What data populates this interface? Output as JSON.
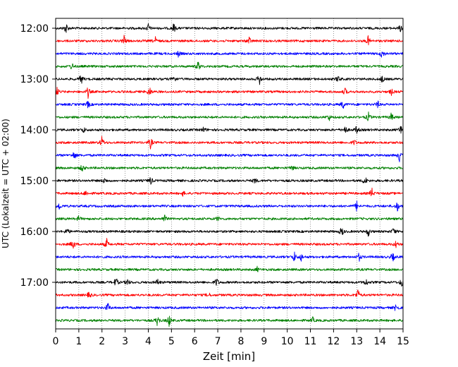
{
  "chart_data": {
    "type": "line",
    "title": "",
    "xlabel": "Zeit  [min]",
    "ylabel": "UTC (Lokalzeit = UTC + 02:00)",
    "xlim": [
      0,
      15
    ],
    "x_ticks": [
      "0",
      "1",
      "2",
      "3",
      "4",
      "5",
      "6",
      "7",
      "8",
      "9",
      "10",
      "11",
      "12",
      "13",
      "14",
      "15"
    ],
    "y_tick_labels": [
      "12:00",
      "13:00",
      "14:00",
      "15:00",
      "16:00",
      "17:00"
    ],
    "grid": "vertical dotted lines at each minute",
    "rows_per_hour": 4,
    "row_minutes": 15,
    "trace_colors": [
      "#000000",
      "#ff0000",
      "#0000ff",
      "#008000"
    ],
    "rows": [
      {
        "start": "12:00",
        "color": "#000000",
        "events": [
          [
            0.45,
            1.0
          ],
          [
            4.0,
            0.7
          ],
          [
            5.1,
            0.8
          ],
          [
            14.9,
            0.7
          ]
        ]
      },
      {
        "start": "12:15",
        "color": "#ff0000",
        "events": [
          [
            2.95,
            1.0
          ],
          [
            4.3,
            0.6
          ],
          [
            8.35,
            0.7
          ],
          [
            13.5,
            0.8
          ]
        ]
      },
      {
        "start": "12:30",
        "color": "#0000ff",
        "events": [
          [
            5.3,
            0.5
          ],
          [
            14.1,
            0.9
          ]
        ]
      },
      {
        "start": "12:45",
        "color": "#008000",
        "events": [
          [
            0.7,
            0.6
          ],
          [
            6.15,
            0.9
          ]
        ]
      },
      {
        "start": "13:00",
        "color": "#000000",
        "events": [
          [
            1.1,
            0.9
          ],
          [
            5.1,
            0.7
          ],
          [
            8.8,
            1.0
          ],
          [
            12.2,
            0.6
          ],
          [
            14.1,
            0.6
          ]
        ]
      },
      {
        "start": "13:15",
        "color": "#ff0000",
        "events": [
          [
            0.05,
            1.0
          ],
          [
            1.4,
            0.9
          ],
          [
            4.05,
            0.9
          ],
          [
            12.5,
            0.6
          ],
          [
            14.5,
            0.5
          ]
        ]
      },
      {
        "start": "13:30",
        "color": "#0000ff",
        "events": [
          [
            1.4,
            0.6
          ],
          [
            12.4,
            0.8
          ],
          [
            13.9,
            0.6
          ]
        ]
      },
      {
        "start": "13:45",
        "color": "#008000",
        "events": [
          [
            11.8,
            0.6
          ],
          [
            13.5,
            0.8
          ],
          [
            14.5,
            0.7
          ]
        ]
      },
      {
        "start": "14:00",
        "color": "#000000",
        "events": [
          [
            1.2,
            0.5
          ],
          [
            6.4,
            0.5
          ],
          [
            12.5,
            0.8
          ],
          [
            13.0,
            0.7
          ],
          [
            14.9,
            0.8
          ]
        ]
      },
      {
        "start": "14:15",
        "color": "#ff0000",
        "events": [
          [
            2.0,
            1.0
          ],
          [
            4.1,
            1.0
          ],
          [
            12.9,
            0.5
          ]
        ]
      },
      {
        "start": "14:30",
        "color": "#0000ff",
        "events": [
          [
            0.8,
            0.8
          ],
          [
            14.85,
            1.0
          ]
        ]
      },
      {
        "start": "14:45",
        "color": "#008000",
        "events": [
          [
            1.15,
            0.7
          ],
          [
            10.2,
            0.5
          ]
        ]
      },
      {
        "start": "15:00",
        "color": "#000000",
        "events": [
          [
            2.1,
            0.5
          ],
          [
            4.1,
            0.7
          ],
          [
            8.6,
            0.5
          ],
          [
            13.35,
            0.9
          ]
        ]
      },
      {
        "start": "15:15",
        "color": "#ff0000",
        "events": [
          [
            1.3,
            0.5
          ],
          [
            5.5,
            0.4
          ],
          [
            13.65,
            0.9
          ]
        ]
      },
      {
        "start": "15:30",
        "color": "#0000ff",
        "events": [
          [
            0.15,
            0.6
          ],
          [
            13.0,
            0.8
          ],
          [
            14.75,
            0.9
          ]
        ]
      },
      {
        "start": "15:45",
        "color": "#008000",
        "events": [
          [
            1.0,
            0.5
          ],
          [
            4.7,
            0.7
          ],
          [
            7.0,
            0.4
          ]
        ]
      },
      {
        "start": "16:00",
        "color": "#000000",
        "events": [
          [
            0.5,
            0.6
          ],
          [
            12.35,
            0.9
          ],
          [
            13.5,
            0.8
          ],
          [
            14.6,
            0.7
          ]
        ]
      },
      {
        "start": "16:15",
        "color": "#ff0000",
        "events": [
          [
            0.75,
            1.0
          ],
          [
            2.2,
            0.9
          ],
          [
            14.7,
            0.6
          ]
        ]
      },
      {
        "start": "16:30",
        "color": "#0000ff",
        "events": [
          [
            10.3,
            0.9
          ],
          [
            10.6,
            0.6
          ],
          [
            13.1,
            0.7
          ],
          [
            14.55,
            0.8
          ]
        ]
      },
      {
        "start": "16:45",
        "color": "#008000",
        "events": [
          [
            8.7,
            0.4
          ]
        ]
      },
      {
        "start": "17:00",
        "color": "#000000",
        "events": [
          [
            2.6,
            0.9
          ],
          [
            3.1,
            0.6
          ],
          [
            4.4,
            0.6
          ],
          [
            6.95,
            0.8
          ],
          [
            13.4,
            0.7
          ],
          [
            14.95,
            0.9
          ]
        ]
      },
      {
        "start": "17:15",
        "color": "#ff0000",
        "events": [
          [
            1.45,
            0.6
          ],
          [
            6.6,
            0.4
          ],
          [
            13.05,
            1.0
          ]
        ]
      },
      {
        "start": "17:30",
        "color": "#0000ff",
        "events": [
          [
            2.25,
            0.8
          ],
          [
            14.7,
            0.8
          ]
        ]
      },
      {
        "start": "17:45",
        "color": "#008000",
        "events": [
          [
            4.4,
            1.0
          ],
          [
            4.9,
            1.0
          ],
          [
            11.1,
            0.5
          ]
        ]
      }
    ]
  }
}
